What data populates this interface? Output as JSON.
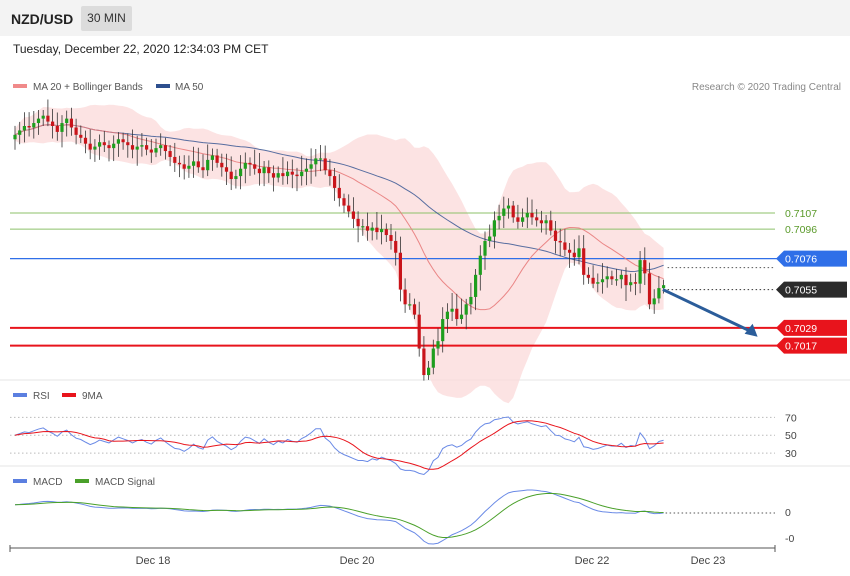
{
  "header": {
    "pair": "NZD/USD",
    "timeframe": "30 MIN",
    "datetime": "Tuesday, December 22, 2020 12:34:03 PM CET"
  },
  "legend": {
    "ma20": "MA 20 + Bollinger Bands",
    "ma50": "MA 50",
    "credit": "Research © 2020 Trading Central"
  },
  "rsi_legend": {
    "rsi": "RSI",
    "ma": "9MA"
  },
  "macd_legend": {
    "macd": "MACD",
    "signal": "MACD Signal"
  },
  "colors": {
    "up": "#1e9e1e",
    "down": "#c9141a",
    "support": "#e8141c",
    "pivot": "#2f6fe8",
    "resistance": "#8cc06a",
    "ma50": "#2d4f8e",
    "band": "#fbdada",
    "arrow": "#2b5d9a"
  },
  "chart_data": [
    {
      "type": "candlestick",
      "x_ticks": [
        "Dec 18",
        "Dec 20",
        "Dec 22",
        "Dec 23"
      ],
      "levels": [
        {
          "value": "0.7107",
          "kind": "resistance"
        },
        {
          "value": "0.7096",
          "kind": "resistance"
        },
        {
          "value": "0.7076",
          "kind": "pivot"
        },
        {
          "value": "0.7055",
          "kind": "last"
        },
        {
          "value": "0.7029",
          "kind": "support"
        },
        {
          "value": "0.7017",
          "kind": "support"
        }
      ],
      "ylim": [
        0.6995,
        0.7185
      ],
      "close": [
        0.716,
        0.7163,
        0.7166,
        0.7165,
        0.7168,
        0.7171,
        0.7173,
        0.7169,
        0.7166,
        0.7162,
        0.7168,
        0.7171,
        0.7165,
        0.716,
        0.7158,
        0.7154,
        0.715,
        0.7152,
        0.7155,
        0.7153,
        0.7151,
        0.7154,
        0.7157,
        0.7155,
        0.7153,
        0.715,
        0.7152,
        0.7153,
        0.715,
        0.7148,
        0.7151,
        0.7153,
        0.7149,
        0.7145,
        0.7141,
        0.714,
        0.7137,
        0.7139,
        0.7142,
        0.7138,
        0.7136,
        0.7143,
        0.7146,
        0.7141,
        0.7138,
        0.7135,
        0.713,
        0.7132,
        0.7137,
        0.7141,
        0.714,
        0.7137,
        0.7134,
        0.7138,
        0.7134,
        0.7131,
        0.7134,
        0.7132,
        0.7135,
        0.7133,
        0.7132,
        0.7135,
        0.7137,
        0.714,
        0.7144,
        0.7144,
        0.7136,
        0.7132,
        0.7124,
        0.7117,
        0.7112,
        0.7108,
        0.7103,
        0.7098,
        0.7098,
        0.7095,
        0.7097,
        0.7094,
        0.7096,
        0.7092,
        0.7088,
        0.708,
        0.7055,
        0.7045,
        0.7045,
        0.7038,
        0.7015,
        0.6997,
        0.7002,
        0.7015,
        0.702,
        0.7035,
        0.704,
        0.7042,
        0.7035,
        0.7038,
        0.7045,
        0.705,
        0.7065,
        0.7078,
        0.7088,
        0.7091,
        0.7102,
        0.7105,
        0.711,
        0.7112,
        0.7104,
        0.7101,
        0.7104,
        0.7107,
        0.7104,
        0.7102,
        0.71,
        0.7102,
        0.7095,
        0.7088,
        0.7087,
        0.7082,
        0.708,
        0.7077,
        0.7083,
        0.7065,
        0.7063,
        0.7059,
        0.706,
        0.7062,
        0.7064,
        0.7062,
        0.7062,
        0.7065,
        0.7058,
        0.706,
        0.7059,
        0.7075,
        0.7066,
        0.7045,
        0.7049,
        0.7056,
        0.7058
      ],
      "annotation": {
        "type": "arrow",
        "from_index": 137,
        "from_value": 0.7055,
        "to_index": 158,
        "to_value": 0.7023
      }
    },
    {
      "type": "line",
      "name": "RSI",
      "series_labels": [
        "RSI",
        "9MA"
      ],
      "ticks": [
        "70",
        "50",
        "30"
      ],
      "ylim": [
        20,
        85
      ]
    },
    {
      "type": "line",
      "name": "MACD",
      "series_labels": [
        "MACD",
        "MACD Signal"
      ],
      "ticks": [
        "0",
        "-0"
      ]
    }
  ]
}
